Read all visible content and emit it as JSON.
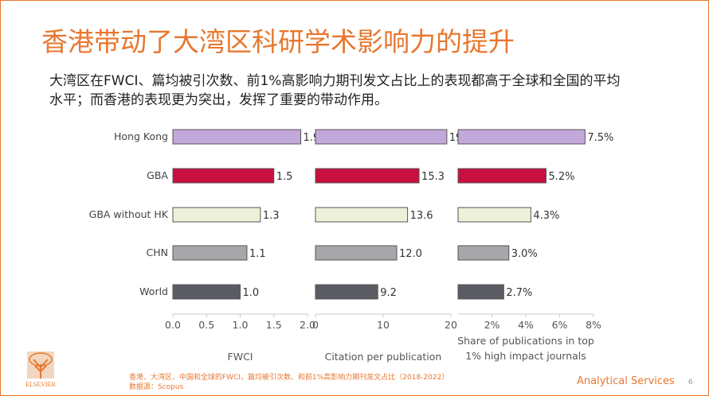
{
  "slide": {
    "title": "香港带动了大湾区科研学术影响力的提升",
    "subtitle": "大湾区在FWCI、篇均被引次数、前1%高影响力期刊发文占比上的表现都高于全球和全国的平均水平；而香港的表现更为突出，发挥了重要的带动作用。",
    "footnote_line1": "香港、大湾区、中国和全球的FWCI，篇均被引次数、和前1%高影响力期刊发文占比（2018-2022）",
    "footnote_line2": "数据源：Scopus",
    "brand": "Analytical Services",
    "page_number": "6",
    "logo_text": "ELSEVIER",
    "logo_icon": "elsevier-tree-icon"
  },
  "chart_data": {
    "type": "bar",
    "orientation": "horizontal",
    "categories": [
      "Hong Kong",
      "GBA",
      "GBA without HK",
      "CHN",
      "World"
    ],
    "colors": [
      "#c3a8da",
      "#c8103e",
      "#eef1d9",
      "#a6a6ab",
      "#5b5c63"
    ],
    "panels": [
      {
        "name": "FWCI",
        "xlabel": "FWCI",
        "values": [
          1.9,
          1.5,
          1.3,
          1.1,
          1.0
        ],
        "value_labels": [
          "1.9",
          "1.5",
          "1.3",
          "1.1",
          "1.0"
        ],
        "xlim": [
          0,
          2.0
        ],
        "ticks": [
          0.0,
          0.5,
          1.0,
          1.5,
          2.0
        ],
        "tick_labels": [
          "0.0",
          "0.5",
          "1.0",
          "1.5",
          "2.0"
        ]
      },
      {
        "name": "Citation per publication",
        "xlabel": "Citation per publication",
        "values": [
          19.4,
          15.3,
          13.6,
          12.0,
          9.2
        ],
        "value_labels": [
          "19.4",
          "15.3",
          "13.6",
          "12.0",
          "9.2"
        ],
        "xlim": [
          0,
          20
        ],
        "ticks": [
          0,
          10,
          20
        ],
        "tick_labels": [
          "0",
          "10",
          "20"
        ]
      },
      {
        "name": "Share of publications in top 1% high impact journals",
        "xlabel": "Share of publications in top 1% high impact journals",
        "values": [
          7.5,
          5.2,
          4.3,
          3.0,
          2.7
        ],
        "value_labels": [
          "7.5%",
          "5.2%",
          "4.3%",
          "3.0%",
          "2.7%"
        ],
        "xlim": [
          0,
          8
        ],
        "ticks": [
          2,
          4,
          6,
          8
        ],
        "tick_labels": [
          "2%",
          "4%",
          "6%",
          "8%"
        ]
      }
    ]
  }
}
